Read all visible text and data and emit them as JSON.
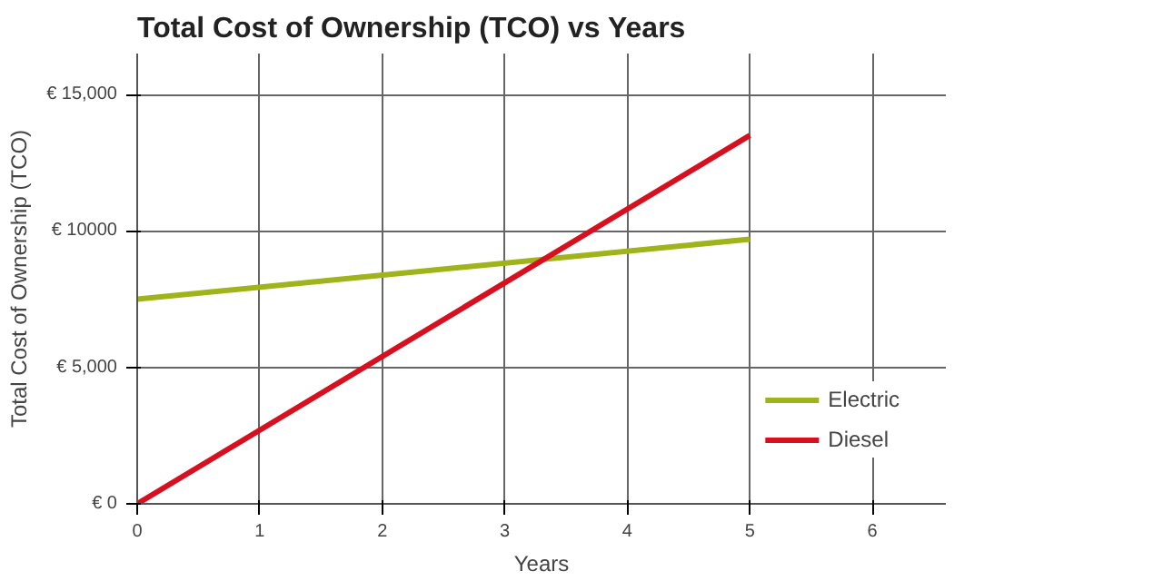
{
  "chart_data": {
    "type": "line",
    "title": "Total Cost of Ownership (TCO) vs Years",
    "xlabel": "Years",
    "ylabel": "Total Cost of Ownership (TCO)",
    "x": [
      0,
      5
    ],
    "series": [
      {
        "name": "Electric",
        "color": "#9fb31a",
        "values": [
          7500,
          9700
        ]
      },
      {
        "name": "Diesel",
        "color": "#d7101f",
        "values": [
          0,
          13500
        ]
      }
    ],
    "xlim": [
      0,
      6.6
    ],
    "ylim": [
      0,
      16500
    ],
    "xticks": [
      0,
      1,
      2,
      3,
      4,
      5,
      6
    ],
    "yticks": [
      {
        "value": 0,
        "label": "€ 0"
      },
      {
        "value": 5000,
        "label": "€ 5,000"
      },
      {
        "value": 10000,
        "label": "€ 10000"
      },
      {
        "value": 15000,
        "label": "€ 15,000"
      }
    ],
    "grid": true,
    "legend": "bottom right",
    "marker": "none",
    "line_style": "solid"
  }
}
